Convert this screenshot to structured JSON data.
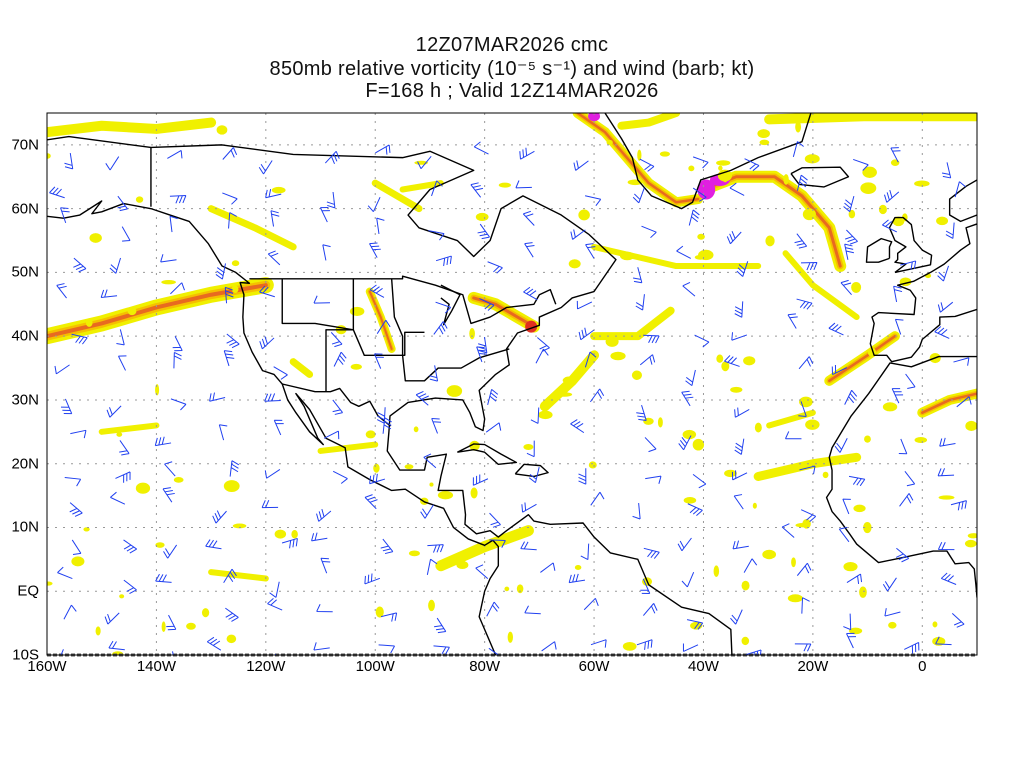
{
  "title": {
    "line1": "12Z07MAR2026 cmc",
    "line2": "850mb relative vorticity (10⁻⁵ s⁻¹) and wind (barb; kt)",
    "line3": "F=168 h ; Valid 12Z14MAR2026"
  },
  "axes": {
    "lat_labels": [
      "70N",
      "60N",
      "50N",
      "40N",
      "30N",
      "20N",
      "10N",
      "EQ",
      "10S"
    ],
    "lat_values": [
      70,
      60,
      50,
      40,
      30,
      20,
      10,
      0,
      -10
    ],
    "lon_labels": [
      "160W",
      "140W",
      "120W",
      "100W",
      "80W",
      "60W",
      "40W",
      "20W",
      "0"
    ],
    "lon_values": [
      -160,
      -140,
      -120,
      -100,
      -80,
      -60,
      -40,
      -20,
      0
    ],
    "lon_range": [
      -160,
      10
    ],
    "lat_range": [
      -10,
      75
    ]
  },
  "colors": {
    "vort_low": "#f0f000",
    "vort_mid": "#f5c000",
    "vort_high": "#e86a20",
    "vort_max": "#e020e0",
    "barbs": "#2040f0",
    "coast": "#000000"
  }
}
